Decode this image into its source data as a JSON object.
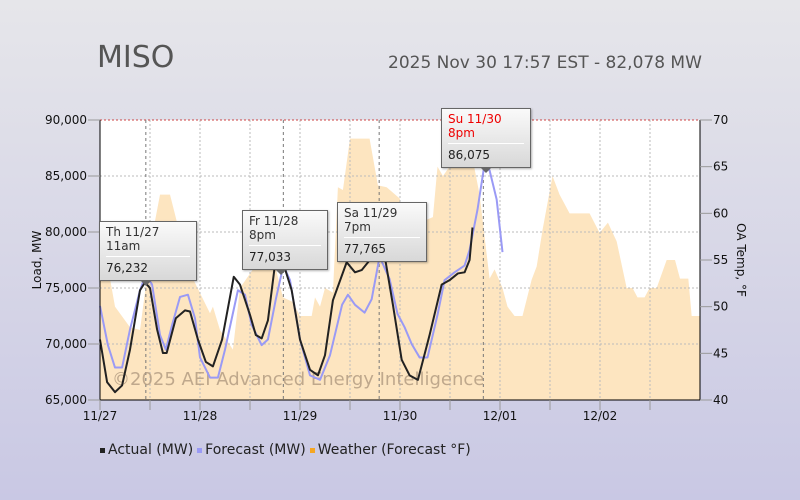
{
  "header": {
    "title": "MISO",
    "status": "2025 Nov 30 17:57 EST - 82,078 MW"
  },
  "chart_data": {
    "type": "line",
    "x_unit": "hours since 11/27 00:00",
    "xlim": [
      0,
      144
    ],
    "x_ticks": [
      {
        "h": 0,
        "label": "11/27"
      },
      {
        "h": 24,
        "label": "11/28"
      },
      {
        "h": 48,
        "label": "11/29"
      },
      {
        "h": 72,
        "label": "11/30"
      },
      {
        "h": 96,
        "label": "12/01"
      },
      {
        "h": 120,
        "label": "12/02"
      }
    ],
    "ylabel": "Load, MW",
    "ylim": [
      65000,
      90000
    ],
    "y_ticks": [
      "65,000",
      "70,000",
      "75,000",
      "80,000",
      "85,000",
      "90,000"
    ],
    "y2label": "OA Temp, °F",
    "y2lim": [
      40,
      70
    ],
    "y2_ticks": [
      "40",
      "45",
      "50",
      "55",
      "60",
      "65",
      "70"
    ],
    "grid": true,
    "colors": {
      "actual": "#222222",
      "forecast": "#9a9af5",
      "weather": "#fde5c0",
      "weather_legend": "#f5a623"
    },
    "legend": [
      "Actual (MW)",
      "Forecast (MW)",
      "Weather (Forecast °F)"
    ],
    "legend_position": "bottom",
    "watermark": "©2025 AEI Advanced Energy Intelligence",
    "series": [
      {
        "name": "Actual (MW)",
        "x": [
          0,
          1.7,
          3.6,
          5.3,
          7.2,
          9.6,
          10.8,
          12,
          13.7,
          15.1,
          16,
          18.2,
          20.4,
          21.6,
          23.5,
          25.4,
          27.1,
          29.3,
          32.1,
          33.6,
          36,
          37.4,
          38.8,
          40.3,
          42.2,
          43.9,
          46,
          48,
          50.4,
          52.3,
          54,
          55.9,
          59.2,
          61.2,
          62.8,
          65.2,
          66.6,
          68.3,
          70.3,
          72.4,
          74.3,
          76.3,
          79.1,
          82,
          83.9,
          85.9,
          87.5,
          88.7,
          89.4
        ],
        "y": [
          70400,
          66600,
          65700,
          66300,
          69500,
          74800,
          75500,
          75000,
          71300,
          69200,
          69200,
          72300,
          73000,
          72900,
          70400,
          68400,
          68000,
          70400,
          76000,
          75300,
          72600,
          70800,
          70500,
          72100,
          77700,
          77300,
          74800,
          70400,
          67700,
          67200,
          69000,
          73900,
          77300,
          76400,
          76600,
          77700,
          79600,
          77900,
          73500,
          68600,
          67200,
          66800,
          70800,
          75300,
          75700,
          76300,
          76400,
          77500,
          80400
        ]
      },
      {
        "name": "Forecast (MW)",
        "x": [
          0,
          1.9,
          3.6,
          5.3,
          7.2,
          9.6,
          11,
          12.5,
          14.4,
          15.8,
          17.3,
          19.2,
          21.1,
          22.8,
          24,
          26.4,
          28.3,
          30,
          33.1,
          34.8,
          36.4,
          38.8,
          40.3,
          42.2,
          44,
          45.6,
          48,
          50.4,
          52.8,
          55.2,
          58.1,
          59.5,
          61.2,
          63.5,
          65.2,
          67.1,
          69.5,
          71.4,
          73.1,
          74.8,
          76.7,
          78.6,
          81,
          82.7,
          85.1,
          87.5,
          88.7,
          90.6,
          92.3,
          93.5,
          95.2,
          96.6
        ],
        "y": [
          73400,
          69900,
          67900,
          67900,
          71300,
          74800,
          76200,
          75300,
          70800,
          69500,
          71700,
          74200,
          74400,
          72300,
          68800,
          67000,
          67000,
          69500,
          74800,
          74400,
          71700,
          69900,
          70400,
          74000,
          77000,
          75700,
          70400,
          67200,
          66800,
          69000,
          73500,
          74400,
          73500,
          72800,
          74000,
          77800,
          75800,
          72700,
          71500,
          70000,
          68800,
          68800,
          72600,
          75700,
          76400,
          77000,
          78400,
          82000,
          86100,
          85500,
          82900,
          78200
        ]
      },
      {
        "name": "Weather (Forecast °F)",
        "x": [
          0,
          2.4,
          3.6,
          7.2,
          9.6,
          12.7,
          14.4,
          16.8,
          18.5,
          22.3,
          26.4,
          27.1,
          28.8,
          31.9,
          33.6,
          36.7,
          40,
          41.5,
          43.9,
          46.3,
          48,
          50.8,
          51.6,
          52.8,
          54,
          55.9,
          57.1,
          58.3,
          60,
          64.7,
          66.7,
          68.8,
          71.9,
          73.6,
          76.7,
          79.9,
          81,
          82.3,
          83.9,
          85.5,
          87.5,
          89.5,
          91.1,
          93.5,
          94.7,
          96.6,
          97.8,
          99.5,
          101.4,
          103.6,
          104.8,
          106.2,
          108.6,
          110.3,
          112.7,
          117.5,
          119.9,
          121.9,
          124,
          126.4,
          127.8,
          129,
          130.7,
          131.9,
          133.6,
          136,
          138,
          139.2,
          141.2,
          142,
          144
        ],
        "y": [
          53,
          53,
          50,
          47.8,
          47.5,
          58,
          62,
          62,
          59,
          53,
          49.3,
          50,
          47.5,
          45.4,
          52,
          54,
          55.3,
          55.3,
          51,
          50.5,
          49,
          49,
          51,
          50,
          52,
          51.5,
          62.8,
          62.5,
          68,
          68,
          63,
          62.8,
          61.6,
          59,
          59,
          59.6,
          65,
          64,
          65,
          65,
          66.8,
          65.7,
          62,
          53,
          54,
          52,
          50,
          49,
          49,
          52.9,
          54.3,
          58.2,
          64,
          62,
          60,
          60,
          57.9,
          59,
          57,
          52,
          52,
          51,
          51,
          52,
          52,
          55,
          55,
          53,
          53,
          49,
          49
        ]
      }
    ],
    "annotations": [
      {
        "label": "Th 11/27 11am",
        "value": "76,232",
        "h": 11
      },
      {
        "label": "Fr 11/28 8pm",
        "value": "77,033",
        "h": 44
      },
      {
        "label": "Sa 11/29 7pm",
        "value": "77,765",
        "h": 67
      },
      {
        "label": "Su 11/30 8pm",
        "value": "86,075",
        "h": 92
      }
    ]
  }
}
